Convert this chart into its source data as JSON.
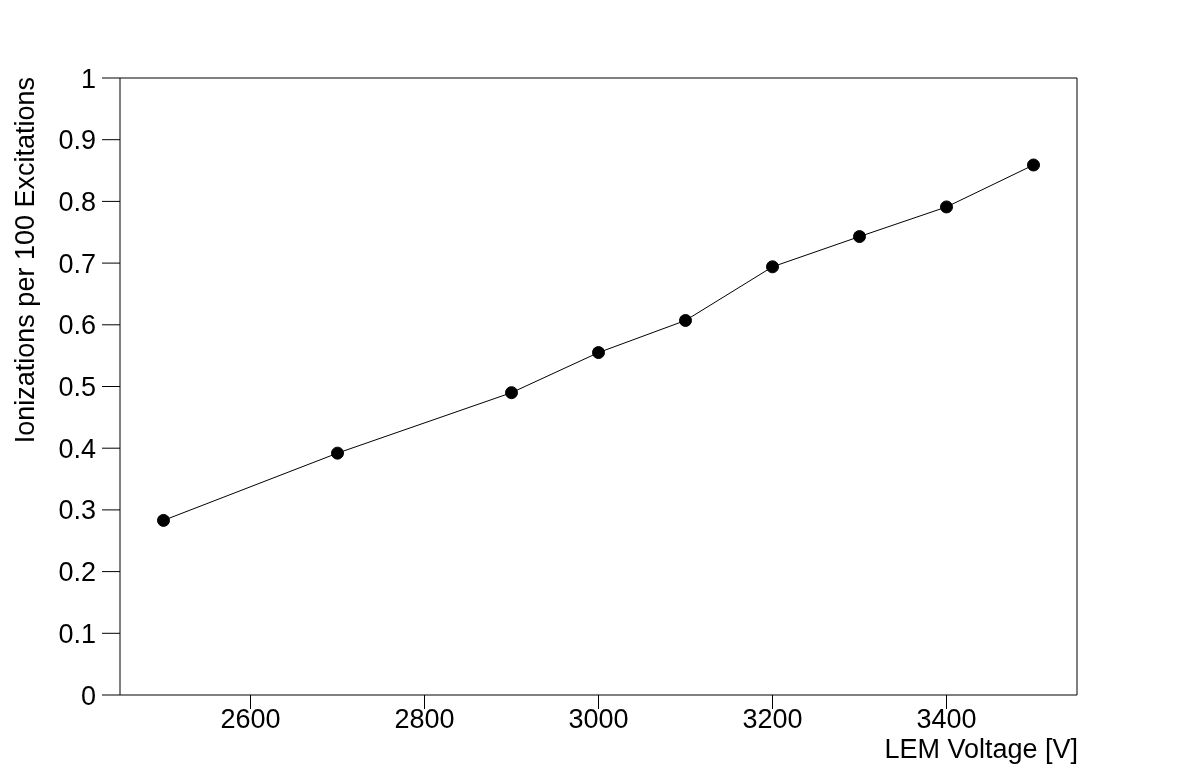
{
  "chart_data": {
    "type": "line",
    "xlabel": "LEM Voltage [V]",
    "ylabel": "Ionizations per 100 Excitations",
    "x": [
      2500,
      2700,
      2900,
      3000,
      3100,
      3200,
      3300,
      3400,
      3500
    ],
    "series": [
      {
        "color": "#000000",
        "values": [
          0.283,
          0.392,
          0.49,
          0.555,
          0.607,
          0.694,
          0.743,
          0.791,
          0.859
        ]
      }
    ],
    "xlim": [
      2450,
      3550
    ],
    "xticks": [
      2600,
      2800,
      3000,
      3200,
      3400
    ],
    "ylim": [
      0,
      1
    ],
    "yticks": [
      0,
      0.1,
      0.2,
      0.3,
      0.4,
      0.5,
      0.6,
      0.7,
      0.8,
      0.9,
      1
    ],
    "grid": false,
    "marker": "circle",
    "line_style": "solid"
  }
}
